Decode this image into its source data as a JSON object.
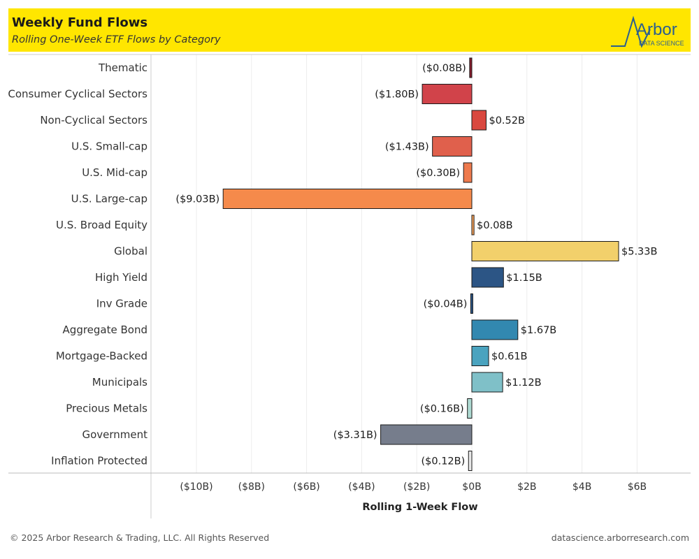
{
  "header": {
    "title": "Weekly Fund Flows",
    "subtitle": "Rolling One-Week ETF Flows by Category",
    "logo_text": "Arbor",
    "logo_sub": "DATA SCIENCE",
    "background": "#ffe600"
  },
  "chart_data": {
    "type": "bar",
    "orientation": "horizontal",
    "xlabel": "Rolling 1-Week Flow",
    "xlim": [
      -11.0,
      7.0
    ],
    "xticks": [
      -10,
      -8,
      -6,
      -4,
      -2,
      0,
      2,
      4,
      6
    ],
    "xtick_labels": [
      "($10B)",
      "($8B)",
      "($6B)",
      "($4B)",
      "($2B)",
      "$0B",
      "$2B",
      "$4B",
      "$6B"
    ],
    "grid": true,
    "categories": [
      "Thematic",
      "Consumer Cyclical Sectors",
      "Non-Cyclical Sectors",
      "U.S. Small-cap",
      "U.S. Mid-cap",
      "U.S. Large-cap",
      "U.S. Broad Equity",
      "Global",
      "High Yield",
      "Inv Grade",
      "Aggregate Bond",
      "Mortgage-Backed",
      "Municipals",
      "Precious Metals",
      "Government",
      "Inflation Protected"
    ],
    "values": [
      -0.08,
      -1.8,
      0.52,
      -1.43,
      -0.3,
      -9.03,
      0.08,
      5.33,
      1.15,
      -0.04,
      1.67,
      0.61,
      1.12,
      -0.16,
      -3.31,
      -0.12
    ],
    "data_labels": [
      "($0.08B)",
      "($1.80B)",
      "$0.52B",
      "($1.43B)",
      "($0.30B)",
      "($9.03B)",
      "$0.08B",
      "$5.33B",
      "$1.15B",
      "($0.04B)",
      "$1.67B",
      "$0.61B",
      "$1.12B",
      "($0.16B)",
      "($3.31B)",
      "($0.12B)"
    ],
    "colors": [
      "#8b1a2b",
      "#d1434a",
      "#d9483f",
      "#e0604c",
      "#ee7a4d",
      "#f58a4b",
      "#f7a25a",
      "#f2d06b",
      "#2c5585",
      "#2c5585",
      "#3288b0",
      "#4aa3bf",
      "#7fc0c8",
      "#aedad2",
      "#767d8c",
      "#e8e8e8"
    ]
  },
  "footer": {
    "copyright": "© 2025 Arbor Research & Trading, LLC. All Rights Reserved",
    "url": "datascience.arborresearch.com"
  }
}
